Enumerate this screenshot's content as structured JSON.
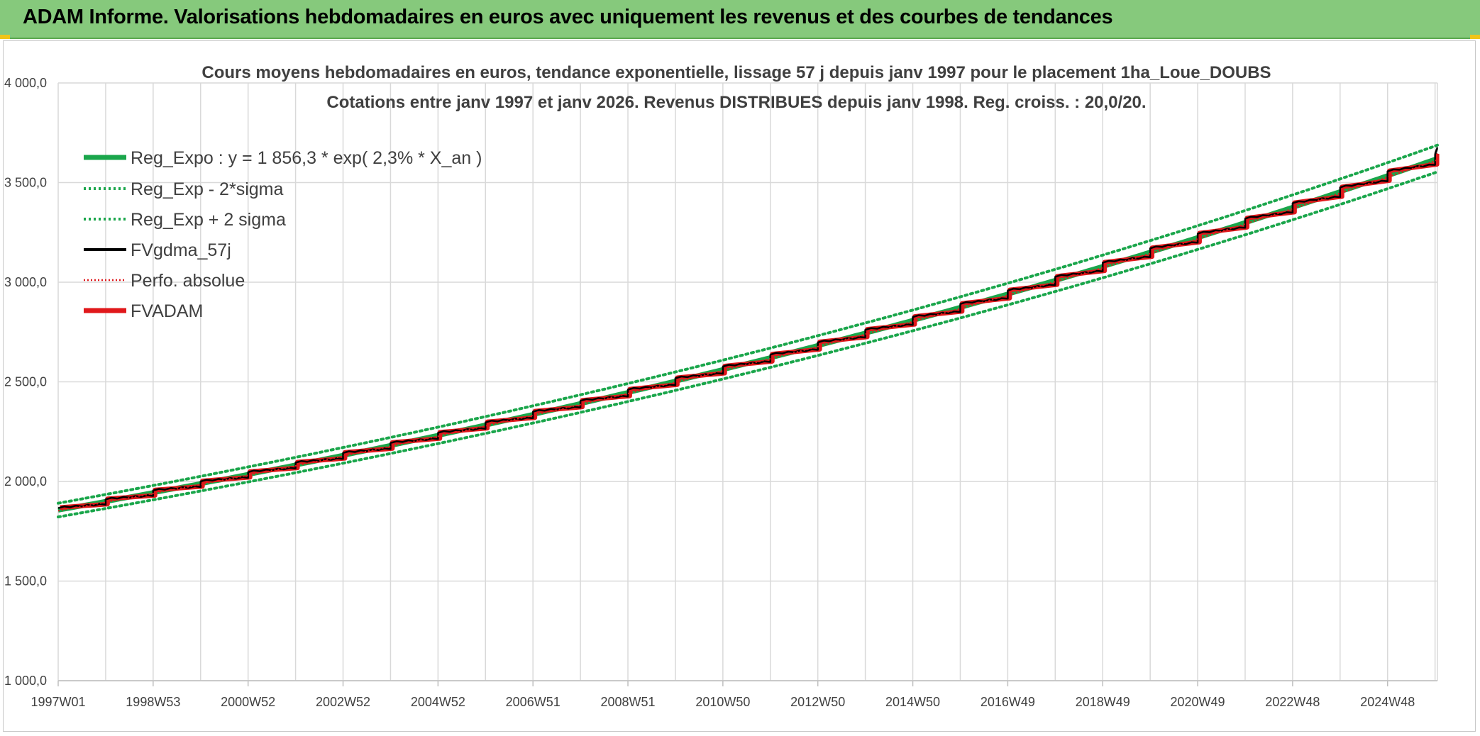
{
  "banner": {
    "title": "ADAM Informe. Valorisations hebdomadaires en euros avec uniquement les revenus et des courbes de tendances"
  },
  "colors": {
    "banner_bg": "#86c97c",
    "reg_expo": "#1aa64b",
    "sigma_bands": "#1aa64b",
    "fvgdma": "#000000",
    "perfo": "#e0181b",
    "fvadam": "#e0181b"
  },
  "chart_data": {
    "type": "line",
    "title": "Cours moyens hebdomadaires en euros, tendance exponentielle, lissage 57 j depuis janv 1997 pour le placement 1ha_Loue_DOUBS",
    "subtitle": "Cotations entre janv 1997 et janv 2026. Revenus DISTRIBUES depuis janv 1998. Reg. croiss. : 20,0/20.",
    "ylim": [
      1000,
      4000
    ],
    "y_ticks": [
      "4 000,0",
      "3 500,0",
      "3 000,0",
      "2 500,0",
      "2 000,0",
      "1 500,0",
      "1 000,0"
    ],
    "y_tick_values": [
      4000,
      3500,
      3000,
      2500,
      2000,
      1500,
      1000
    ],
    "x_range": [
      "1997W01",
      "2026W04"
    ],
    "x_ticks": [
      "1997W01",
      "1998W53",
      "2000W52",
      "2002W52",
      "2004W52",
      "2006W51",
      "2008W51",
      "2010W50",
      "2012W50",
      "2014W50",
      "2016W49",
      "2018W49",
      "2020W49",
      "2022W48",
      "2024W48"
    ],
    "x_tick_years": [
      1997.0,
      1999.0,
      2001.0,
      2003.0,
      2005.0,
      2007.0,
      2009.0,
      2011.0,
      2013.0,
      2015.0,
      2017.0,
      2019.0,
      2021.0,
      2023.0,
      2025.0
    ],
    "x_end_year": 2026.05,
    "grid": true,
    "legend_position": "top-left",
    "trend": {
      "start_value": 1856.3,
      "growth_rate": 0.023,
      "sigma_band_ratio": 0.0185
    },
    "series": [
      {
        "name": "Reg_Expo : y = 1 856,3 * exp( 2,3% *  X_an )",
        "style": "solid-thick",
        "x": [
          "1997W01",
          "2001W01",
          "2005W01",
          "2009W01",
          "2013W01",
          "2017W01",
          "2021W01",
          "2026W04"
        ],
        "values": [
          1856.3,
          2031.1,
          2222.4,
          2431.7,
          2660.8,
          2911.4,
          3185.6,
          3663.0
        ]
      },
      {
        "name": "Reg_Exp - 2*sigma",
        "style": "dotted",
        "x": [
          "1997W01",
          "2001W01",
          "2005W01",
          "2009W01",
          "2013W01",
          "2017W01",
          "2021W01",
          "2026W04"
        ],
        "values": [
          1822.0,
          1993.5,
          2181.3,
          2386.7,
          2611.6,
          2857.5,
          3126.7,
          3595.0
        ]
      },
      {
        "name": "Reg_Exp + 2 sigma",
        "style": "dotted",
        "x": [
          "1997W01",
          "2001W01",
          "2005W01",
          "2009W01",
          "2013W01",
          "2017W01",
          "2021W01",
          "2026W04"
        ],
        "values": [
          1890.6,
          2068.7,
          2263.5,
          2476.7,
          2710.0,
          2965.3,
          3244.5,
          3731.0
        ]
      },
      {
        "name": "FVgdma_57j",
        "style": "solid-medium"
      },
      {
        "name": "Perfo. absolue",
        "style": "dotted-red"
      },
      {
        "name": "FVADAM",
        "style": "solid-thick",
        "x": [
          "1997W01",
          "1998W01",
          "1999W01",
          "2000W01",
          "2001W01",
          "2002W01",
          "2003W01",
          "2004W01",
          "2005W01",
          "2006W01",
          "2007W01",
          "2008W01",
          "2009W01",
          "2010W01",
          "2011W01",
          "2012W01",
          "2013W01",
          "2014W01",
          "2015W01",
          "2016W01",
          "2017W01",
          "2018W01",
          "2019W01",
          "2020W01",
          "2021W01",
          "2022W01",
          "2023W01",
          "2024W01",
          "2025W01",
          "2026W01"
        ],
        "values": [
          1856.3,
          1899.5,
          1943.7,
          1988.9,
          2035.2,
          2082.5,
          2131.0,
          2180.6,
          2231.3,
          2283.2,
          2336.3,
          2390.7,
          2446.3,
          2503.2,
          2561.5,
          2621.1,
          2682.0,
          2744.4,
          2808.3,
          2873.6,
          2940.5,
          3008.9,
          3078.9,
          3150.5,
          3223.8,
          3298.8,
          3375.6,
          3454.1,
          3534.5,
          3616.7
        ]
      }
    ]
  }
}
